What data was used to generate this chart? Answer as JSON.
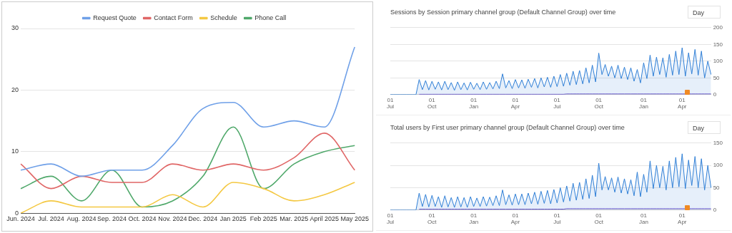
{
  "chart_data": [
    {
      "type": "line",
      "categories": [
        "Jun. 2024",
        "Jul. 2024",
        "Aug. 2024",
        "Sep. 2024",
        "Oct. 2024",
        "Nov. 2024",
        "Dec. 2024",
        "Jan 2025",
        "Feb 2025",
        "Mar. 2025",
        "April 2025",
        "May 2025"
      ],
      "series": [
        {
          "name": "Request Quote",
          "color": "#6fa0e8",
          "values": [
            7,
            8,
            6,
            7,
            7,
            11,
            17,
            18,
            14,
            15,
            14,
            27
          ]
        },
        {
          "name": "Contact Form",
          "color": "#e06666",
          "values": [
            8,
            4,
            6,
            5,
            5,
            8,
            7,
            8,
            7,
            9,
            13,
            7
          ]
        },
        {
          "name": "Schedule",
          "color": "#f4c842",
          "values": [
            0,
            2,
            1,
            1,
            1,
            3,
            1,
            5,
            4,
            2,
            3,
            5
          ]
        },
        {
          "name": "Phone Call",
          "color": "#4fa86a",
          "values": [
            4,
            6,
            2,
            7,
            1,
            2,
            6,
            14,
            4,
            8,
            10,
            11
          ]
        }
      ],
      "ylim": [
        0,
        30
      ],
      "yticks": [
        0,
        10,
        20,
        30
      ],
      "grid": "y",
      "legend": "top"
    },
    {
      "type": "area",
      "title": "Sessions by Session primary channel group (Default Channel Group) over time",
      "annotations": [
        "Day"
      ],
      "categories": [
        "01 Jul",
        null,
        null,
        null,
        null,
        null,
        null,
        null,
        null,
        null,
        null,
        null,
        null,
        "01 Oct",
        null,
        null,
        null,
        null,
        null,
        null,
        null,
        null,
        null,
        null,
        null,
        null,
        "01 Jan",
        null,
        null,
        null,
        null,
        null,
        null,
        null,
        null,
        null,
        null,
        null,
        null,
        "01 Apr",
        null,
        null,
        null,
        null,
        null,
        null,
        null,
        null,
        null,
        null,
        null,
        null,
        "01 Jul",
        null,
        null,
        null,
        null,
        null,
        null,
        null,
        null,
        null,
        null,
        null,
        null,
        "01 Oct",
        null,
        null,
        null,
        null,
        null,
        null,
        null,
        null,
        null,
        null,
        null,
        null,
        null,
        "01 Jan",
        null,
        null,
        null,
        null,
        null,
        null,
        null,
        null,
        null,
        null,
        null,
        "01 Apr",
        null,
        null,
        null,
        null,
        null,
        null,
        null,
        null,
        null
      ],
      "series": [
        {
          "color": "#2f7fd6",
          "values": [
            0,
            0,
            0,
            0,
            0,
            0,
            0,
            0,
            0,
            45,
            15,
            42,
            14,
            40,
            16,
            38,
            14,
            40,
            15,
            36,
            13,
            38,
            15,
            35,
            14,
            37,
            16,
            34,
            15,
            38,
            16,
            36,
            17,
            40,
            18,
            62,
            20,
            42,
            18,
            45,
            20,
            44,
            19,
            46,
            22,
            48,
            20,
            50,
            23,
            52,
            22,
            55,
            24,
            60,
            25,
            64,
            28,
            70,
            30,
            72,
            32,
            80,
            35,
            88,
            38,
            124,
            60,
            90,
            55,
            85,
            50,
            88,
            48,
            82,
            45,
            80,
            40,
            75,
            35,
            95,
            48,
            118,
            55,
            112,
            60,
            110,
            52,
            120,
            58,
            130,
            60,
            140,
            55,
            125,
            62,
            135,
            58,
            130,
            50,
            100,
            60
          ]
        },
        {
          "color": "#6b4fc8",
          "type": "line",
          "values": [
            null,
            null,
            null,
            null,
            null,
            null,
            null,
            null,
            null,
            1,
            1,
            1,
            1,
            1,
            1,
            1,
            1,
            1,
            1,
            1,
            1,
            1,
            1,
            1,
            1,
            1,
            1,
            1,
            1,
            1,
            1,
            1,
            1,
            1,
            1,
            1,
            1,
            1,
            1,
            1,
            1,
            1,
            1,
            1,
            1,
            1,
            1,
            1,
            1,
            1,
            1,
            1,
            1,
            1,
            1,
            2,
            2,
            2,
            2,
            2,
            2,
            2,
            2,
            2,
            2,
            2,
            2,
            2,
            2,
            2,
            2,
            2,
            2,
            2,
            2,
            2,
            2,
            2,
            2,
            2,
            2,
            2,
            2,
            2,
            2,
            2,
            2,
            2,
            2,
            2,
            2,
            2,
            2,
            2,
            2,
            2,
            2,
            2,
            2,
            2,
            2
          ]
        }
      ],
      "ylim": [
        0,
        200
      ],
      "yticks": [
        0,
        50,
        100,
        150,
        200
      ],
      "grid": "y"
    },
    {
      "type": "area",
      "title": "Total users by First user primary channel group (Default Channel Group) over time",
      "annotations": [
        "Day"
      ],
      "categories": [
        "01 Jul",
        null,
        null,
        null,
        null,
        null,
        null,
        null,
        null,
        null,
        null,
        null,
        null,
        "01 Oct",
        null,
        null,
        null,
        null,
        null,
        null,
        null,
        null,
        null,
        null,
        null,
        null,
        "01 Jan",
        null,
        null,
        null,
        null,
        null,
        null,
        null,
        null,
        null,
        null,
        null,
        null,
        "01 Apr",
        null,
        null,
        null,
        null,
        null,
        null,
        null,
        null,
        null,
        null,
        null,
        null,
        "01 Jul",
        null,
        null,
        null,
        null,
        null,
        null,
        null,
        null,
        null,
        null,
        null,
        null,
        "01 Oct",
        null,
        null,
        null,
        null,
        null,
        null,
        null,
        null,
        null,
        null,
        null,
        null,
        null,
        "01 Jan",
        null,
        null,
        null,
        null,
        null,
        null,
        null,
        null,
        null,
        null,
        null,
        "01 Apr",
        null,
        null,
        null,
        null,
        null,
        null,
        null,
        null,
        null
      ],
      "series": [
        {
          "color": "#2f7fd6",
          "values": [
            0,
            0,
            0,
            0,
            0,
            0,
            0,
            0,
            0,
            38,
            8,
            35,
            7,
            33,
            8,
            30,
            6,
            32,
            7,
            28,
            6,
            30,
            7,
            28,
            6,
            30,
            8,
            27,
            8,
            30,
            9,
            29,
            10,
            32,
            10,
            45,
            12,
            34,
            11,
            36,
            12,
            36,
            12,
            38,
            14,
            40,
            13,
            42,
            15,
            44,
            14,
            46,
            16,
            50,
            18,
            54,
            20,
            60,
            22,
            62,
            24,
            70,
            26,
            78,
            30,
            105,
            45,
            75,
            45,
            72,
            40,
            74,
            38,
            70,
            36,
            68,
            32,
            85,
            30,
            80,
            40,
            110,
            48,
            100,
            50,
            98,
            45,
            110,
            50,
            118,
            52,
            126,
            48,
            112,
            55,
            120,
            50,
            115,
            45,
            100,
            50
          ]
        },
        {
          "color": "#6b4fc8",
          "type": "line",
          "values": [
            null,
            null,
            null,
            null,
            null,
            null,
            null,
            null,
            null,
            2,
            2,
            2,
            2,
            2,
            2,
            2,
            2,
            2,
            2,
            2,
            2,
            2,
            2,
            2,
            2,
            2,
            2,
            2,
            2,
            2,
            2,
            2,
            2,
            2,
            2,
            2,
            2,
            2,
            2,
            2,
            2,
            2,
            2,
            2,
            2,
            2,
            2,
            2,
            2,
            2,
            2,
            2,
            2,
            2,
            2,
            3,
            3,
            3,
            3,
            3,
            3,
            3,
            3,
            3,
            3,
            3,
            3,
            3,
            3,
            3,
            3,
            3,
            3,
            3,
            3,
            3,
            3,
            3,
            3,
            3,
            3,
            3,
            3,
            3,
            3,
            3,
            3,
            3,
            3,
            3,
            3,
            3,
            3,
            3,
            3,
            3,
            3,
            3,
            3,
            3,
            3
          ]
        }
      ],
      "ylim": [
        0,
        150
      ],
      "yticks": [
        0,
        50,
        100,
        150
      ],
      "grid": "y"
    }
  ]
}
